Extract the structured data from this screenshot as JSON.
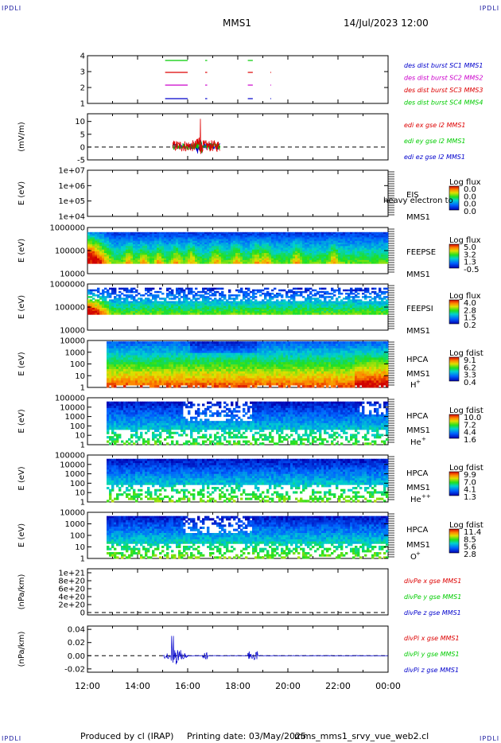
{
  "header": {
    "corner_label": "IPDLI",
    "mission": "MMS1",
    "datetime": "14/Jul/2023 12:00"
  },
  "footer": {
    "produced_by": "Produced by  cl (IRAP)",
    "printing_date": "Printing date: 03/May/2025",
    "script_name": "mms_mms1_srvy_vue_web2.cl"
  },
  "colors": {
    "green": "#00cc00",
    "red": "#dd0000",
    "magenta": "#cc00cc",
    "blue": "#0000cc"
  },
  "chart_data": [
    {
      "type": "line",
      "panel": "burst",
      "yticks": [
        "1",
        "2",
        "3",
        "4"
      ],
      "series": [
        {
          "name": "des dist burst SC1 MMS1",
          "color": "#0000cc"
        },
        {
          "name": "des dist burst SC2 MMS2",
          "color": "#cc00cc"
        },
        {
          "name": "des dist burst SC3 MMS3",
          "color": "#dd0000"
        },
        {
          "name": "des dist burst SC4 MMS4",
          "color": "#00cc00"
        }
      ]
    },
    {
      "type": "line",
      "panel": "edi",
      "ylabel": "(mV/m)",
      "ylim": [
        -5,
        13
      ],
      "yticks": [
        "10",
        "5",
        "0",
        "-5"
      ],
      "series": [
        {
          "name": "edi ex gse l2 MMS1",
          "color": "#dd0000"
        },
        {
          "name": "edi ey gse l2 MMS1",
          "color": "#00cc00"
        },
        {
          "name": "edi ez gse l2 MMS1",
          "color": "#0000cc"
        }
      ]
    },
    {
      "type": "heatmap",
      "panel": "eis",
      "ylabel": "E (eV)",
      "yticks": [
        "1e+07",
        "1e+06",
        "1e+05",
        "1e+04"
      ],
      "instrument": [
        "EIS",
        "MMS1"
      ],
      "overlay_text": "heavy electron to",
      "cbar_title": "Log flux",
      "cbar_values": [
        "0.0",
        "0.0",
        "0.0",
        "0.0"
      ]
    },
    {
      "type": "heatmap",
      "panel": "feepse",
      "ylabel": "E (eV)",
      "yticks": [
        "1000000",
        "100000",
        "10000"
      ],
      "instrument": [
        "FEEPSE",
        "MMS1"
      ],
      "cbar_title": "Log flux",
      "cbar_values": [
        "5.0",
        "3.2",
        "1.3",
        "-0.5"
      ]
    },
    {
      "type": "heatmap",
      "panel": "feepsi",
      "ylabel": "E (eV)",
      "yticks": [
        "1000000",
        "100000",
        "10000"
      ],
      "instrument": [
        "FEEPSI",
        "MMS1"
      ],
      "cbar_title": "Log flux",
      "cbar_values": [
        "4.0",
        "2.8",
        "1.5",
        "0.2"
      ]
    },
    {
      "type": "heatmap",
      "panel": "hpca_h",
      "ylabel": "E (eV)",
      "yticks": [
        "10000",
        "1000",
        "100",
        "10",
        "1"
      ],
      "instrument": [
        "HPCA",
        "MMS1"
      ],
      "species": "H",
      "charge": "+",
      "cbar_title": "Log fdist",
      "cbar_values": [
        "9.1",
        "6.2",
        "3.3",
        "0.4"
      ]
    },
    {
      "type": "heatmap",
      "panel": "hpca_he",
      "ylabel": "E (eV)",
      "yticks": [
        "100000",
        "10000",
        "1000",
        "100",
        "10",
        "1"
      ],
      "instrument": [
        "HPCA",
        "MMS1"
      ],
      "species": "He",
      "charge": "+",
      "cbar_title": "Log fdist",
      "cbar_values": [
        "10.0",
        "7.2",
        "4.4",
        "1.6"
      ]
    },
    {
      "type": "heatmap",
      "panel": "hpca_hepp",
      "ylabel": "E (eV)",
      "yticks": [
        "100000",
        "10000",
        "1000",
        "100",
        "10",
        "1"
      ],
      "instrument": [
        "HPCA",
        "MMS1"
      ],
      "species": "He",
      "charge": "++",
      "cbar_title": "Log fdist",
      "cbar_values": [
        "9.9",
        "7.0",
        "4.1",
        "1.3"
      ]
    },
    {
      "type": "heatmap",
      "panel": "hpca_o",
      "ylabel": "E (eV)",
      "yticks": [
        "10000",
        "1000",
        "100",
        "10",
        "1"
      ],
      "instrument": [
        "HPCA",
        "MMS1"
      ],
      "species": "O",
      "charge": "+",
      "cbar_title": "Log fdist",
      "cbar_values": [
        "11.4",
        "8.5",
        "5.6",
        "2.8"
      ]
    },
    {
      "type": "line",
      "panel": "divpe",
      "ylabel": "(nPa/km)",
      "ylim": [
        0,
        1.1e+21
      ],
      "yticks": [
        "1e+21",
        "8e+20",
        "6e+20",
        "4e+20",
        "2e+20",
        "0"
      ],
      "series": [
        {
          "name": "divPe x gse MMS1",
          "color": "#dd0000"
        },
        {
          "name": "divPe y gse MMS1",
          "color": "#00cc00"
        },
        {
          "name": "divPe z gse MMS1",
          "color": "#0000cc"
        }
      ]
    },
    {
      "type": "line",
      "panel": "divpi",
      "ylabel": "(nPa/km)",
      "ylim": [
        -0.025,
        0.045
      ],
      "yticks": [
        "0.04",
        "0.02",
        "0.00",
        "-0.02"
      ],
      "series": [
        {
          "name": "divPi x gse MMS1",
          "color": "#dd0000"
        },
        {
          "name": "divPi y gse MMS1",
          "color": "#00cc00"
        },
        {
          "name": "divPi z gse MMS1",
          "color": "#0000cc"
        }
      ],
      "xticks": [
        "12:00",
        "14:00",
        "16:00",
        "18:00",
        "20:00",
        "22:00",
        "00:00"
      ]
    }
  ]
}
